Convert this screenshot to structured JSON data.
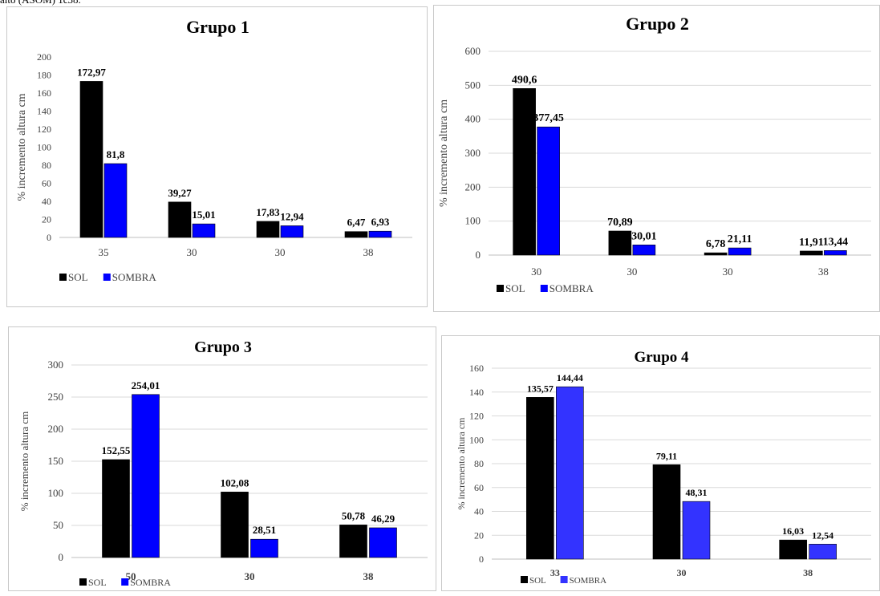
{
  "header_text": "alto (ASOM) 1c38.",
  "colors": {
    "sol": "#000000",
    "sombra": "#0000ff",
    "sombra_alt": "#3333ff",
    "grid": "#d9d9d9",
    "axis": "#bfbfbf"
  },
  "chart_data": [
    {
      "type": "bar",
      "title": "Grupo 1",
      "ylabel": "% incremento altura  cm",
      "xlabel": "",
      "categories": [
        "35",
        "30",
        "30",
        "38"
      ],
      "series": [
        {
          "name": "SOL",
          "values": [
            172.97,
            39.27,
            17.83,
            6.47
          ],
          "labels": [
            "172,97",
            "39,27",
            "17,83",
            "6,47"
          ]
        },
        {
          "name": "SOMBRA",
          "values": [
            81.8,
            15.01,
            12.94,
            6.93
          ],
          "labels": [
            "81,8",
            "15,01",
            "12,94",
            "6,93"
          ]
        }
      ],
      "ylim": [
        0,
        200
      ],
      "yticks": [
        "0",
        "20",
        "40",
        "60",
        "80",
        "100",
        "120",
        "140",
        "160",
        "180",
        "200"
      ],
      "grid": false,
      "legend": "bottom-left"
    },
    {
      "type": "bar",
      "title": "Grupo  2",
      "ylabel": "% incremento altura cm",
      "xlabel": "",
      "categories": [
        "30",
        "30",
        "30",
        "38"
      ],
      "series": [
        {
          "name": "SOL",
          "values": [
            490.6,
            70.89,
            6.78,
            11.91
          ],
          "labels": [
            "490,6",
            "70,89",
            "6,78",
            "11,91"
          ]
        },
        {
          "name": "SOMBRA",
          "values": [
            377.45,
            30.01,
            21.11,
            13.44
          ],
          "labels": [
            "377,45",
            "30,01",
            "21,11",
            "13,44"
          ]
        }
      ],
      "ylim": [
        0,
        600
      ],
      "yticks": [
        "0",
        "100",
        "200",
        "300",
        "400",
        "500",
        "600"
      ],
      "grid": true,
      "legend": "bottom-left"
    },
    {
      "type": "bar",
      "title": "Grupo 3",
      "ylabel": "% incremento altura  cm",
      "xlabel": "",
      "categories": [
        "50",
        "30",
        "38"
      ],
      "series": [
        {
          "name": "SOL",
          "values": [
            152.55,
            102.08,
            50.78
          ],
          "labels": [
            "152,55",
            "102,08",
            "50,78"
          ]
        },
        {
          "name": "SOMBRA",
          "values": [
            254.01,
            28.51,
            46.29
          ],
          "labels": [
            "254,01",
            "28,51",
            "46,29"
          ]
        }
      ],
      "ylim": [
        0,
        300
      ],
      "yticks": [
        "0",
        "50",
        "100",
        "150",
        "200",
        "250",
        "300"
      ],
      "grid": true,
      "legend": "bottom-left"
    },
    {
      "type": "bar",
      "title": "Grupo 4",
      "ylabel": "% incremento altura  cm",
      "xlabel": "",
      "categories": [
        "33",
        "30",
        "38"
      ],
      "series": [
        {
          "name": "SOL",
          "values": [
            135.57,
            79.11,
            16.03
          ],
          "labels": [
            "135,57",
            "79,11",
            "16,03"
          ]
        },
        {
          "name": "SOMBRA",
          "values": [
            144.44,
            48.31,
            12.54
          ],
          "labels": [
            "144,44",
            "48,31",
            "12,54"
          ]
        }
      ],
      "ylim": [
        0,
        160
      ],
      "yticks": [
        "0",
        "20",
        "40",
        "60",
        "80",
        "100",
        "120",
        "140",
        "160"
      ],
      "grid": true,
      "legend": "bottom-left"
    }
  ]
}
